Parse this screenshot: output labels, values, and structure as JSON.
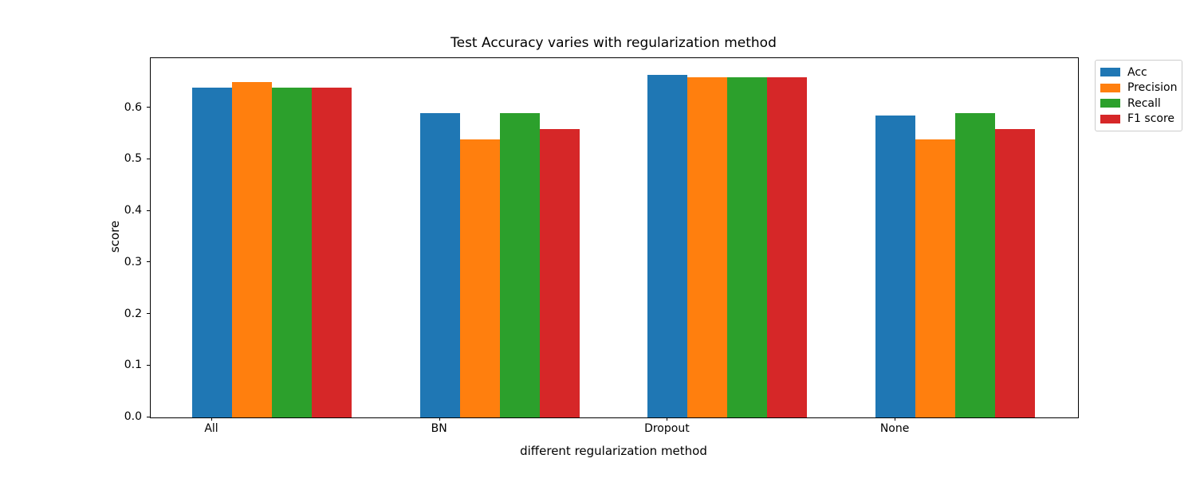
{
  "chart_data": {
    "type": "bar",
    "title": "Test Accuracy varies with regularization method",
    "xlabel": "different regularization method",
    "ylabel": "score",
    "categories": [
      "All",
      "BN",
      "Dropout",
      "None"
    ],
    "series": [
      {
        "name": "Acc",
        "color": "#1f77b4",
        "values": [
          0.64,
          0.59,
          0.665,
          0.585
        ]
      },
      {
        "name": "Precision",
        "color": "#ff7f0e",
        "values": [
          0.65,
          0.54,
          0.66,
          0.54
        ]
      },
      {
        "name": "Recall",
        "color": "#2ca02c",
        "values": [
          0.64,
          0.59,
          0.66,
          0.59
        ]
      },
      {
        "name": "F1 score",
        "color": "#d62728",
        "values": [
          0.64,
          0.56,
          0.66,
          0.56
        ]
      }
    ],
    "ylim": [
      0,
      0.697
    ],
    "yticks": [
      0.0,
      0.1,
      0.2,
      0.3,
      0.4,
      0.5,
      0.6
    ],
    "ytick_labels": [
      "0.0",
      "0.1",
      "0.2",
      "0.3",
      "0.4",
      "0.5",
      "0.6"
    ],
    "legend": {
      "position": "upper-right-outside",
      "entries": [
        "Acc",
        "Precision",
        "Recall",
        "F1 score"
      ]
    },
    "grid": false,
    "background_color": "#ffffff",
    "axes_edge_color": "#000000"
  }
}
